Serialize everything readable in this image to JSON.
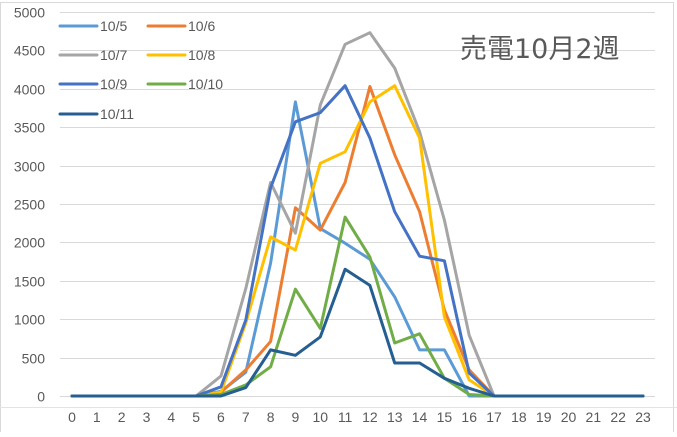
{
  "chart_data": {
    "type": "line",
    "title": "売電10月2週",
    "xlabel": "",
    "ylabel": "",
    "x": [
      0,
      1,
      2,
      3,
      4,
      5,
      6,
      7,
      8,
      9,
      10,
      11,
      12,
      13,
      14,
      15,
      16,
      17,
      18,
      19,
      20,
      21,
      22,
      23
    ],
    "ylim": [
      0,
      5000
    ],
    "yticks": [
      0,
      500,
      1000,
      1500,
      2000,
      2500,
      3000,
      3500,
      4000,
      4500,
      5000
    ],
    "grid": true,
    "legend_position": "top-left-inside",
    "series": [
      {
        "name": "10/5",
        "color": "#5B9BD5",
        "values": [
          0,
          0,
          0,
          0,
          0,
          0,
          60,
          310,
          1730,
          3830,
          2180,
          1990,
          1780,
          1290,
          600,
          600,
          0,
          0,
          0,
          0,
          0,
          0,
          0,
          0
        ]
      },
      {
        "name": "10/6",
        "color": "#ED7D31",
        "values": [
          0,
          0,
          0,
          0,
          0,
          0,
          50,
          340,
          710,
          2450,
          2160,
          2780,
          4030,
          3140,
          2400,
          1120,
          340,
          0,
          0,
          0,
          0,
          0,
          0,
          0
        ]
      },
      {
        "name": "10/7",
        "color": "#A5A5A5",
        "values": [
          0,
          0,
          0,
          0,
          0,
          0,
          260,
          1400,
          2780,
          2120,
          3790,
          4580,
          4730,
          4270,
          3440,
          2290,
          790,
          0,
          0,
          0,
          0,
          0,
          0,
          0
        ]
      },
      {
        "name": "10/8",
        "color": "#FFC000",
        "values": [
          0,
          0,
          0,
          0,
          0,
          0,
          50,
          950,
          2070,
          1900,
          3030,
          3180,
          3830,
          4040,
          3360,
          1030,
          210,
          0,
          0,
          0,
          0,
          0,
          0,
          0
        ]
      },
      {
        "name": "10/9",
        "color": "#4472C4",
        "values": [
          0,
          0,
          0,
          0,
          0,
          0,
          120,
          990,
          2710,
          3570,
          3690,
          4040,
          3360,
          2400,
          1820,
          1760,
          300,
          0,
          0,
          0,
          0,
          0,
          0,
          0
        ]
      },
      {
        "name": "10/10",
        "color": "#70AD47",
        "values": [
          0,
          0,
          0,
          0,
          0,
          0,
          20,
          145,
          380,
          1390,
          880,
          2330,
          1810,
          690,
          810,
          230,
          20,
          0,
          0,
          0,
          0,
          0,
          0,
          0
        ]
      },
      {
        "name": "10/11",
        "color": "#255E91",
        "values": [
          0,
          0,
          0,
          0,
          0,
          0,
          0,
          110,
          600,
          530,
          770,
          1650,
          1440,
          430,
          430,
          230,
          100,
          0,
          0,
          0,
          0,
          0,
          0,
          0
        ]
      }
    ]
  },
  "colors": {
    "gridline": "#D9D9D9",
    "tick_text": "#595959",
    "border": "#D9D9D9"
  }
}
